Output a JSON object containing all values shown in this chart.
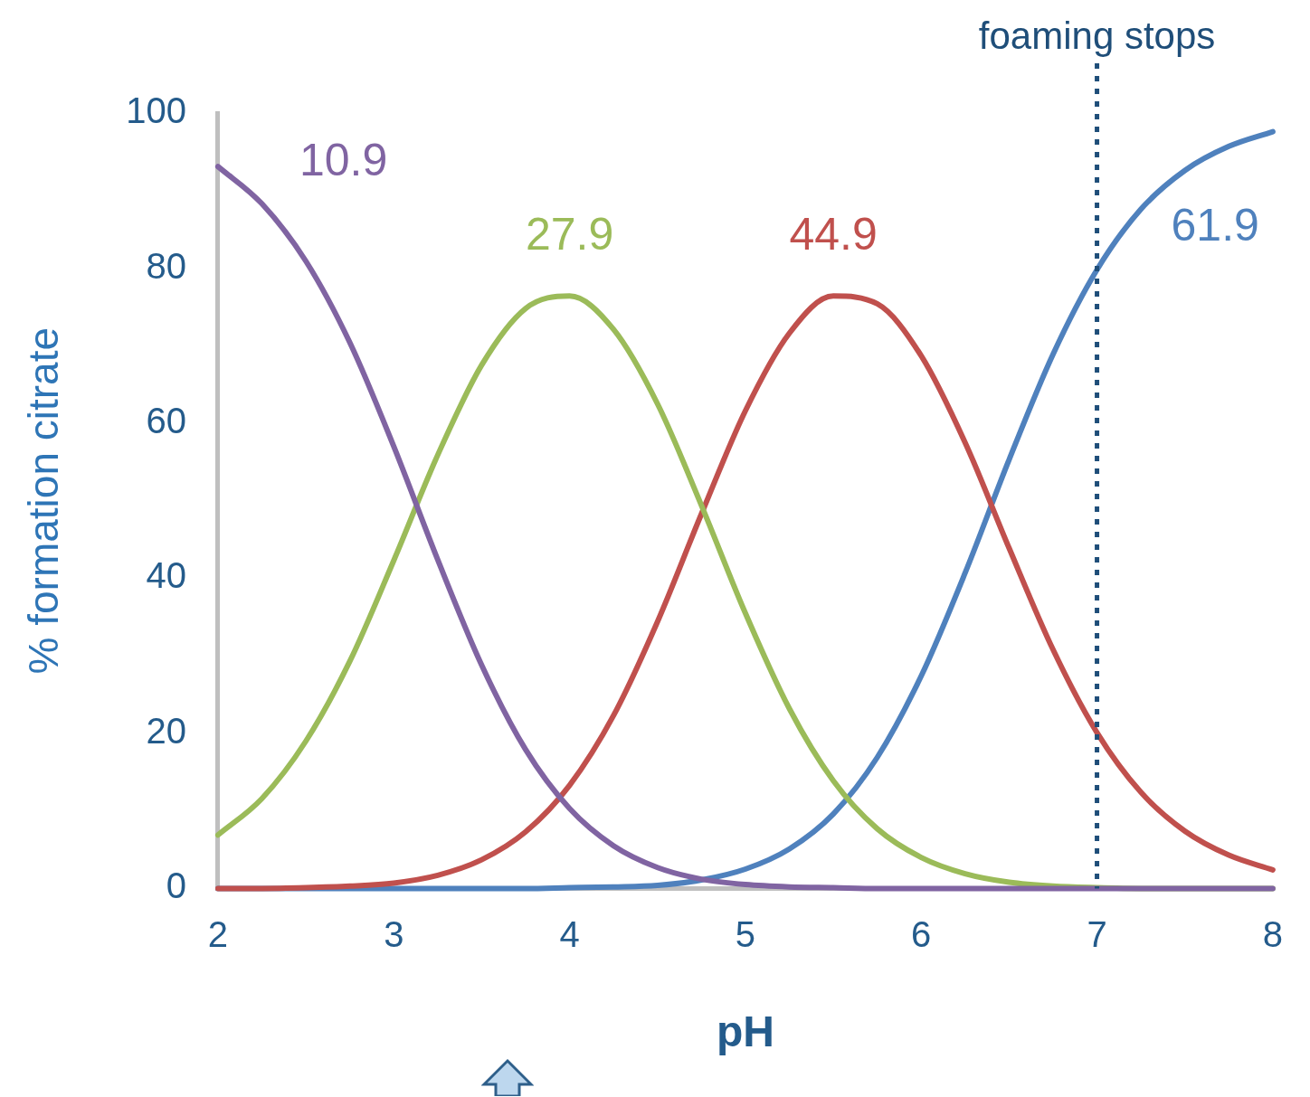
{
  "chart_data": {
    "type": "line",
    "xlabel": "pH",
    "ylabel": "% formation citrate",
    "x": [
      2,
      2.25,
      2.5,
      2.75,
      3,
      3.25,
      3.5,
      3.75,
      4,
      4.25,
      4.5,
      4.75,
      5,
      5.25,
      5.5,
      5.75,
      6,
      6.25,
      6.5,
      6.75,
      7,
      7.25,
      7.5,
      7.75,
      8
    ],
    "series": [
      {
        "name": "10.9",
        "color": "#8064a2",
        "values": [
          93.1,
          88.3,
          80.9,
          70.4,
          57.0,
          42.4,
          28.8,
          17.9,
          10.3,
          5.5,
          2.7,
          1.2,
          0.5,
          0.2,
          0.1,
          0,
          0,
          0,
          0,
          0,
          0,
          0,
          0,
          0,
          0
        ]
      },
      {
        "name": "27.9",
        "color": "#9bbb59",
        "values": [
          6.9,
          11.6,
          19.0,
          29.3,
          42.3,
          55.9,
          67.5,
          74.8,
          76.4,
          72.1,
          62.5,
          49.4,
          35.5,
          23.2,
          13.9,
          7.7,
          4.0,
          1.9,
          0.8,
          0.3,
          0.1,
          0,
          0,
          0,
          0
        ]
      },
      {
        "name": "44.9",
        "color": "#c0504d",
        "values": [
          0,
          0,
          0.1,
          0.3,
          0.7,
          1.7,
          3.7,
          7.3,
          13.3,
          22.3,
          34.4,
          48.3,
          61.6,
          71.6,
          76.4,
          75.4,
          68.7,
          57.5,
          43.9,
          30.8,
          20.1,
          12.4,
          7.4,
          4.3,
          2.4
        ]
      },
      {
        "name": "61.9",
        "color": "#4f81bd",
        "values": [
          0,
          0,
          0,
          0,
          0,
          0,
          0,
          0,
          0.1,
          0.2,
          0.4,
          1.1,
          2.5,
          5.1,
          9.6,
          16.9,
          27.4,
          40.7,
          55.3,
          68.9,
          79.8,
          87.6,
          92.6,
          95.7,
          97.6
        ]
      }
    ],
    "xlim": [
      2,
      8
    ],
    "xticks": [
      2,
      3,
      4,
      5,
      6,
      7,
      8
    ],
    "ylim": [
      0,
      100
    ],
    "yticks": [
      0,
      20,
      40,
      60,
      80,
      100
    ],
    "ref_lines": [
      {
        "axis": "x",
        "value": 7,
        "label": "foaming stops",
        "color": "#1f4e79",
        "line_style": "dotted"
      }
    ],
    "grid": false,
    "legend": false,
    "marker": "none",
    "line_style": "solid"
  }
}
